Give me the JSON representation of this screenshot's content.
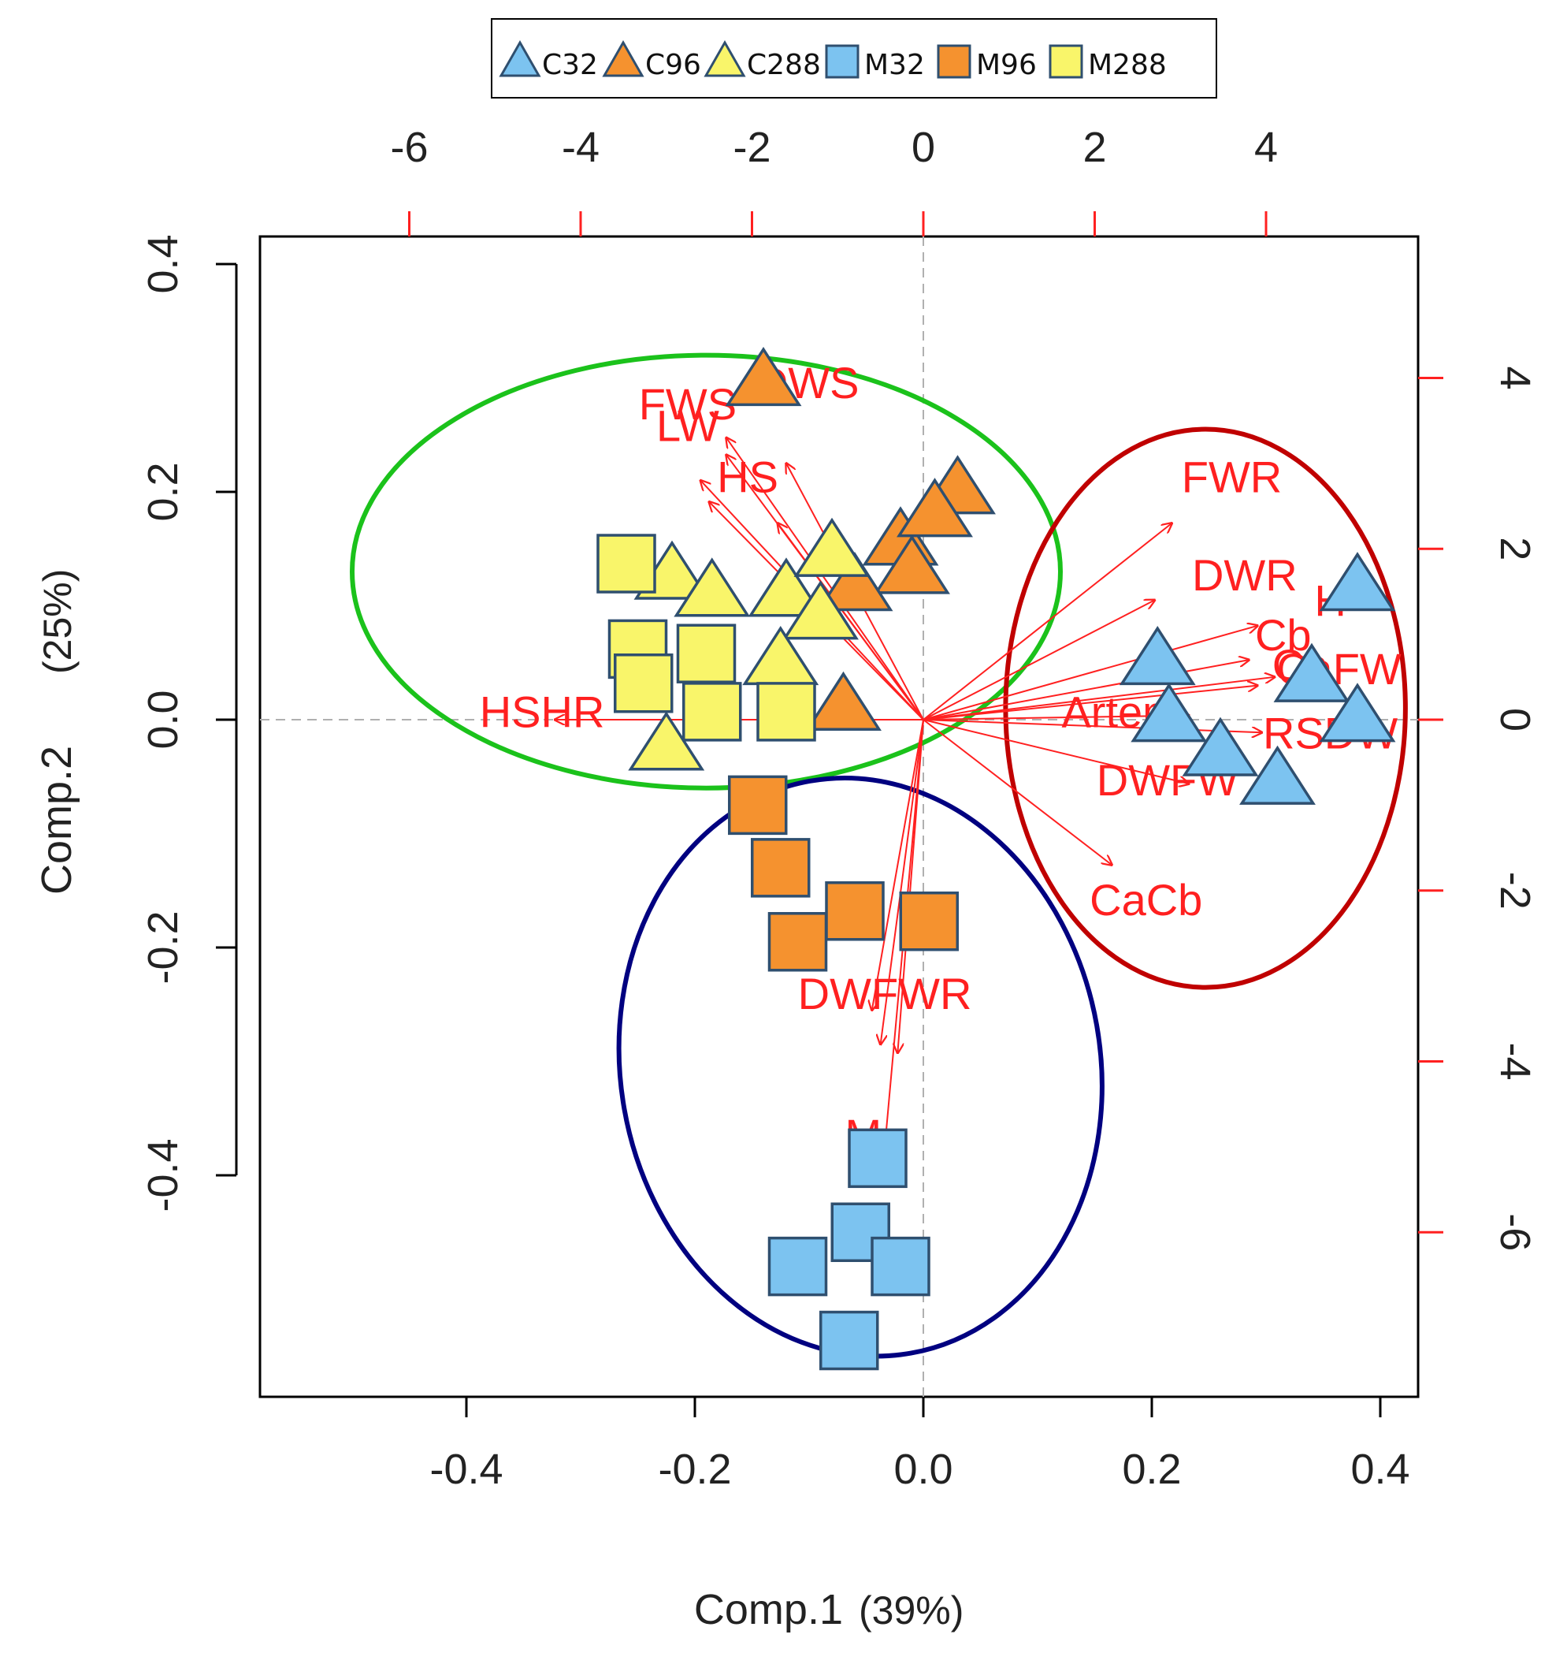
{
  "chart_data": {
    "type": "scatter",
    "subtype": "pca-biplot",
    "xlabel": "Comp.1",
    "xlabel_pct": "(39%)",
    "ylabel": "Comp.2",
    "ylabel_pct": "(25%)",
    "xlim": [
      -0.56,
      0.425
    ],
    "ylim": [
      -0.585,
      0.425
    ],
    "x_ticks": [
      "-0.4",
      "-0.2",
      "0.0",
      "0.2",
      "0.4"
    ],
    "x_tick_values": [
      -0.4,
      -0.2,
      0.0,
      0.2,
      0.4
    ],
    "y_ticks": [
      "-0.4",
      "-0.2",
      "0.0",
      "0.2",
      "0.4"
    ],
    "y_tick_values": [
      -0.4,
      -0.2,
      0.0,
      0.2,
      0.4
    ],
    "top_ticks": [
      "-6",
      "-4",
      "-2",
      "0",
      "2",
      "4"
    ],
    "top_tick_values": [
      -6,
      -4,
      -2,
      0,
      2,
      4
    ],
    "right_ticks": [
      "4",
      "2",
      "0",
      "-2",
      "-4",
      "-6"
    ],
    "right_tick_values": [
      4,
      2,
      0,
      -2,
      -4,
      -6
    ],
    "loading_scale": 0.1,
    "colors": {
      "c32": "#7cc3f0",
      "c96": "#f5922f",
      "c288": "#f9f56a",
      "m32": "#7cc3f0",
      "m96": "#f5922f",
      "m288": "#f9f56a",
      "marker_stroke": "#2f4f6f",
      "loading": "#ff2020",
      "ellipse_green": "#1bc21b",
      "ellipse_red": "#c00000",
      "ellipse_blue": "#000080"
    },
    "legend": [
      {
        "label": "C32",
        "shape": "triangle",
        "color_key": "c32"
      },
      {
        "label": "C96",
        "shape": "triangle",
        "color_key": "c96"
      },
      {
        "label": "C288",
        "shape": "triangle",
        "color_key": "c288"
      },
      {
        "label": "M32",
        "shape": "square",
        "color_key": "m32"
      },
      {
        "label": "M96",
        "shape": "square",
        "color_key": "m96"
      },
      {
        "label": "M288",
        "shape": "square",
        "color_key": "m288"
      }
    ],
    "series": [
      {
        "name": "C32",
        "shape": "triangle",
        "color_key": "c32",
        "points": [
          [
            0.38,
            0.115
          ],
          [
            0.205,
            0.05
          ],
          [
            0.215,
            0.0
          ],
          [
            0.34,
            0.035
          ],
          [
            0.38,
            0.0
          ],
          [
            0.26,
            -0.03
          ],
          [
            0.31,
            -0.055
          ]
        ]
      },
      {
        "name": "C96",
        "shape": "triangle",
        "color_key": "c96",
        "points": [
          [
            -0.14,
            0.295
          ],
          [
            0.03,
            0.2
          ],
          [
            -0.02,
            0.155
          ],
          [
            0.01,
            0.18
          ],
          [
            -0.01,
            0.13
          ],
          [
            -0.06,
            0.115
          ],
          [
            -0.07,
            0.01
          ]
        ]
      },
      {
        "name": "C288",
        "shape": "triangle",
        "color_key": "c288",
        "points": [
          [
            -0.22,
            0.125
          ],
          [
            -0.185,
            0.11
          ],
          [
            -0.12,
            0.11
          ],
          [
            -0.08,
            0.145
          ],
          [
            -0.09,
            0.09
          ],
          [
            -0.125,
            0.05
          ],
          [
            -0.225,
            -0.025
          ]
        ]
      },
      {
        "name": "M32",
        "shape": "square",
        "color_key": "m32",
        "points": [
          [
            -0.04,
            -0.385
          ],
          [
            -0.055,
            -0.45
          ],
          [
            -0.11,
            -0.48
          ],
          [
            -0.02,
            -0.48
          ],
          [
            -0.065,
            -0.545
          ]
        ]
      },
      {
        "name": "M96",
        "shape": "square",
        "color_key": "m96",
        "points": [
          [
            -0.145,
            -0.075
          ],
          [
            -0.125,
            -0.13
          ],
          [
            -0.06,
            -0.168
          ],
          [
            -0.11,
            -0.195
          ],
          [
            0.005,
            -0.177
          ]
        ]
      },
      {
        "name": "M288",
        "shape": "square",
        "color_key": "m288",
        "points": [
          [
            -0.26,
            0.137
          ],
          [
            -0.25,
            0.062
          ],
          [
            -0.245,
            0.032
          ],
          [
            -0.19,
            0.058
          ],
          [
            -0.185,
            0.007
          ],
          [
            -0.12,
            0.007
          ]
        ]
      }
    ],
    "loadings": [
      {
        "label": "FWS",
        "x": -2.3,
        "y": 3.3,
        "lx": -2.75,
        "ly": 3.65
      },
      {
        "label": "LW",
        "x": -2.3,
        "y": 3.1,
        "lx": -2.75,
        "ly": 3.4
      },
      {
        "label": "DWS",
        "x": -1.6,
        "y": 3.0,
        "lx": -1.35,
        "ly": 3.9
      },
      {
        "label": "HS",
        "x": -2.6,
        "y": 2.8,
        "lx": -2.05,
        "ly": 2.8
      },
      {
        "label": "",
        "x": -1.7,
        "y": 2.3,
        "lx": 0,
        "ly": 0
      },
      {
        "label": "",
        "x": -2.5,
        "y": 2.55,
        "lx": 0,
        "ly": 0
      },
      {
        "label": "HSHR",
        "x": -4.3,
        "y": 0.0,
        "lx": -4.45,
        "ly": 0.05
      },
      {
        "label": "FWR",
        "x": 2.9,
        "y": 2.3,
        "lx": 3.6,
        "ly": 2.8
      },
      {
        "label": "DWR",
        "x": 2.7,
        "y": 1.4,
        "lx": 3.75,
        "ly": 1.65
      },
      {
        "label": "H",
        "x": 3.9,
        "y": 1.1,
        "lx": 4.75,
        "ly": 1.35
      },
      {
        "label": "Cb",
        "x": 3.8,
        "y": 0.7,
        "lx": 4.2,
        "ly": 0.95
      },
      {
        "label": "Ca",
        "x": 3.9,
        "y": 0.4,
        "lx": 4.4,
        "ly": 0.6
      },
      {
        "label": "CaFW",
        "x": 4.1,
        "y": 0.5,
        "lx": 4.85,
        "ly": 0.55
      },
      {
        "label": "Artem",
        "x": 3.1,
        "y": 0.05,
        "lx": 2.3,
        "ly": 0.05
      },
      {
        "label": "RSDW",
        "x": 3.95,
        "y": -0.15,
        "lx": 4.75,
        "ly": -0.2
      },
      {
        "label": "DWFW",
        "x": 3.1,
        "y": -0.75,
        "lx": 2.85,
        "ly": -0.75
      },
      {
        "label": "CaCb",
        "x": 2.2,
        "y": -1.7,
        "lx": 2.6,
        "ly": -2.15
      },
      {
        "label": "DWFWR",
        "x": -0.3,
        "y": -3.9,
        "lx": -0.45,
        "ly": -3.25
      },
      {
        "label": "",
        "x": -0.5,
        "y": -3.8,
        "lx": 0,
        "ly": 0
      },
      {
        "label": "",
        "x": -0.6,
        "y": -3.4,
        "lx": 0,
        "ly": 0
      },
      {
        "label": "M",
        "x": -0.45,
        "y": -5.0,
        "lx": -0.7,
        "ly": -4.9
      }
    ],
    "ellipses": [
      {
        "name": "group-c-low",
        "color_key": "ellipse_green",
        "cx": -0.19,
        "cy": 0.13,
        "rx": 0.31,
        "ry": 0.19,
        "rot": 0
      },
      {
        "name": "group-c32",
        "color_key": "ellipse_red",
        "cx": 0.247,
        "cy": 0.01,
        "rx": 0.175,
        "ry": 0.245,
        "rot": 0
      },
      {
        "name": "group-m",
        "color_key": "ellipse_blue",
        "cx": -0.055,
        "cy": -0.305,
        "rx": 0.21,
        "ry": 0.255,
        "rot": -10
      }
    ]
  }
}
